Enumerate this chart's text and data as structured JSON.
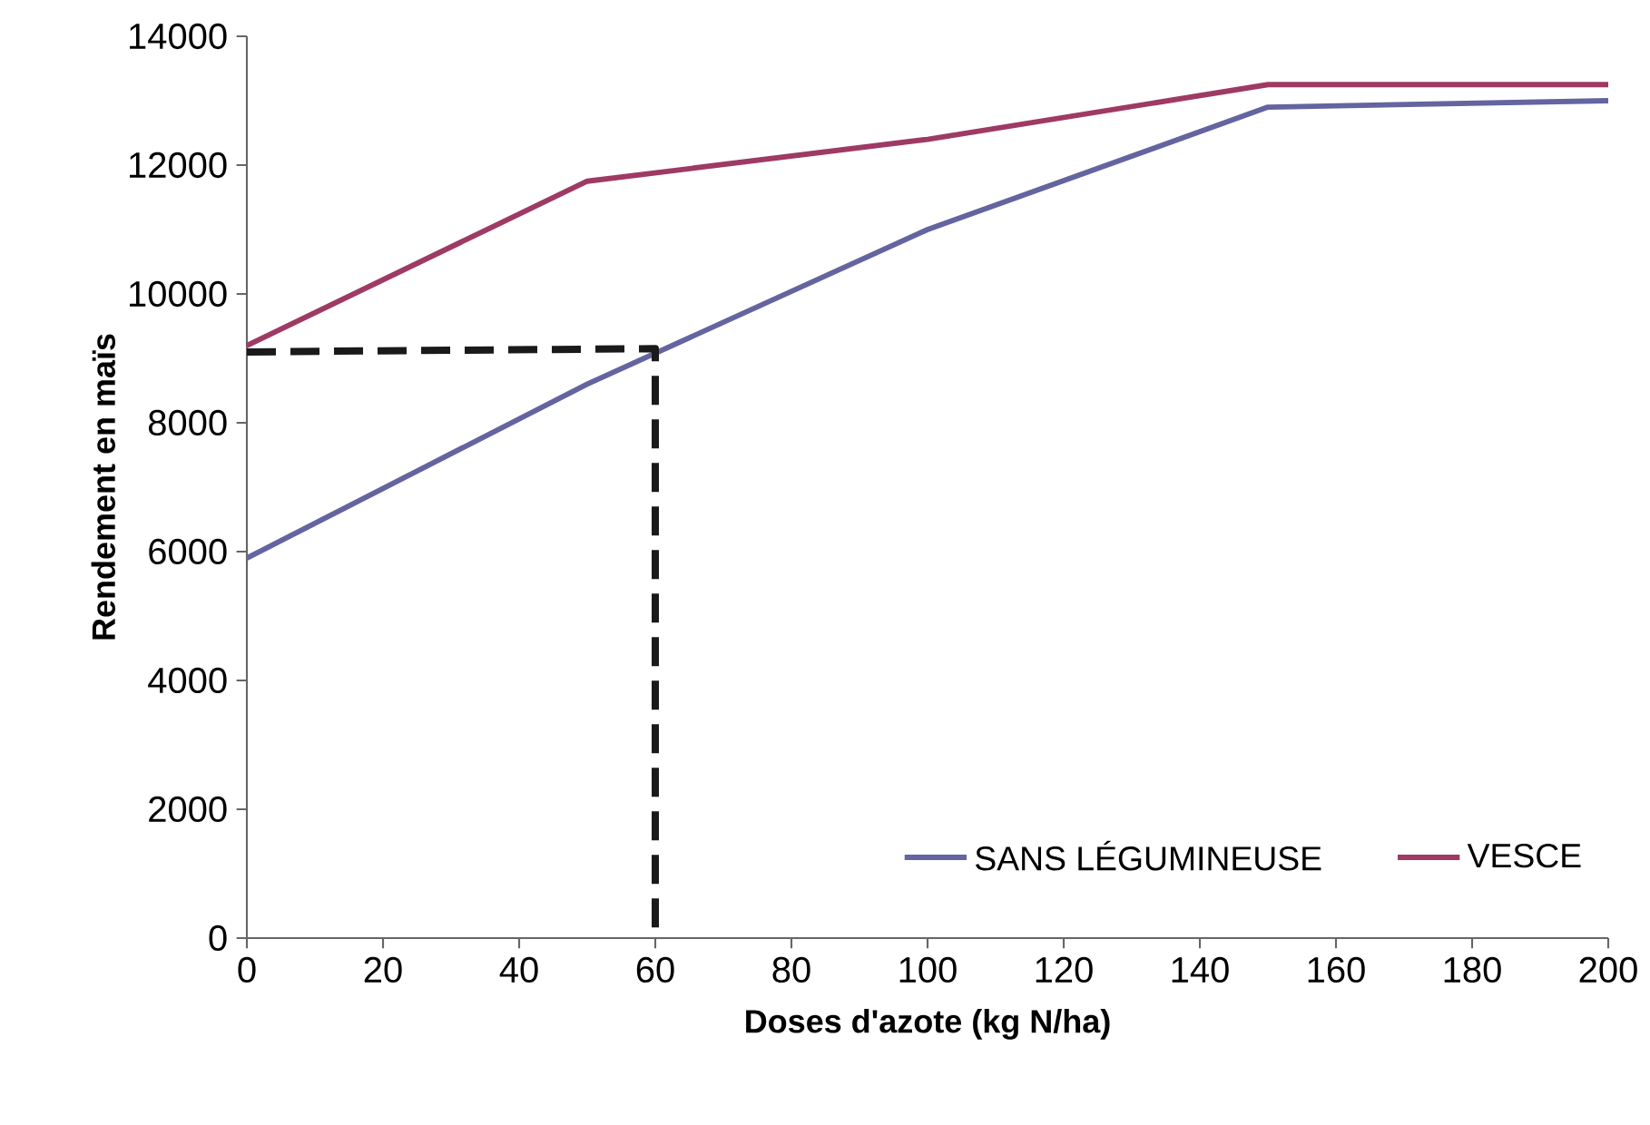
{
  "chart_data": {
    "type": "line",
    "xlabel": "Doses d'azote (kg N/ha)",
    "ylabel": "Rendement en maïs",
    "xlim": [
      0,
      200
    ],
    "xticks": [
      0,
      20,
      40,
      60,
      80,
      100,
      120,
      140,
      160,
      180,
      200
    ],
    "ylim": [
      0,
      14000
    ],
    "yticks": [
      0,
      2000,
      4000,
      6000,
      8000,
      10000,
      12000,
      14000
    ],
    "grid": false,
    "legend": "bottom right",
    "marker": "none",
    "series": [
      {
        "name": "SANS LÉGUMINEUSE",
        "color": "#6464a0",
        "x": [
          0,
          50,
          100,
          150,
          200
        ],
        "values": [
          5900,
          8600,
          11000,
          12900,
          13000
        ],
        "line_style": "solid"
      },
      {
        "name": "VESCE",
        "color": "#9e3a64",
        "x": [
          0,
          50,
          100,
          150,
          200
        ],
        "values": [
          9200,
          11750,
          12400,
          13250,
          13250
        ],
        "line_style": "solid"
      },
      {
        "color": "#1a1a1a",
        "x": [
          0,
          60,
          60
        ],
        "values": [
          9100,
          9150,
          0
        ],
        "line_style": "dashed"
      }
    ]
  }
}
